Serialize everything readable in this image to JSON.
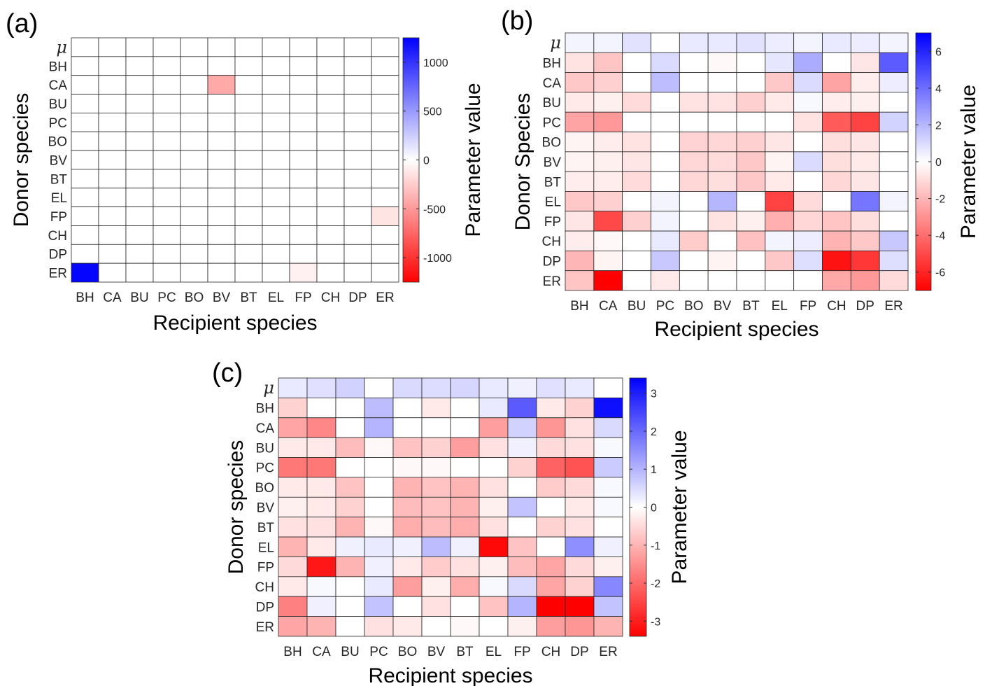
{
  "figure": {
    "background": "#ffffff"
  },
  "colormap": {
    "neg": "#ff0000",
    "zero": "#ffffff",
    "pos": "#0000ff",
    "grid": "#262626"
  },
  "chart_data": [
    {
      "type": "heatmap",
      "panel_label": "(a)",
      "xlabel": "Recipient species",
      "ylabel": "Donor species",
      "colorbar_label": "Parameter value",
      "columns": [
        "BH",
        "CA",
        "BU",
        "PC",
        "BO",
        "BV",
        "BT",
        "EL",
        "FP",
        "CH",
        "DP",
        "ER"
      ],
      "rows": [
        "μ",
        "BH",
        "CA",
        "BU",
        "PC",
        "BO",
        "BV",
        "BT",
        "EL",
        "FP",
        "CH",
        "DP",
        "ER"
      ],
      "clim": [
        -1250,
        1250
      ],
      "colorbar_ticks": [
        "1000",
        "500",
        "0",
        "-500",
        "-1000"
      ],
      "colorbar_tick_values": [
        1000,
        500,
        0,
        -500,
        -1000
      ],
      "values": [
        [
          0,
          0,
          0,
          0,
          0,
          0,
          0,
          0,
          0,
          0,
          0,
          0
        ],
        [
          0,
          0,
          0,
          0,
          0,
          0,
          0,
          0,
          0,
          0,
          0,
          0
        ],
        [
          0,
          0,
          0,
          0,
          0,
          -420,
          0,
          0,
          0,
          0,
          0,
          0
        ],
        [
          0,
          0,
          0,
          0,
          0,
          0,
          0,
          0,
          0,
          0,
          0,
          0
        ],
        [
          0,
          0,
          0,
          0,
          0,
          0,
          0,
          0,
          0,
          0,
          0,
          0
        ],
        [
          0,
          0,
          0,
          0,
          0,
          0,
          0,
          0,
          0,
          0,
          0,
          0
        ],
        [
          0,
          0,
          0,
          0,
          0,
          0,
          0,
          0,
          0,
          0,
          0,
          0
        ],
        [
          0,
          0,
          0,
          0,
          0,
          0,
          0,
          0,
          0,
          0,
          0,
          0
        ],
        [
          0,
          0,
          0,
          0,
          0,
          0,
          0,
          0,
          0,
          0,
          0,
          0
        ],
        [
          0,
          0,
          0,
          0,
          0,
          0,
          0,
          0,
          0,
          0,
          0,
          -130
        ],
        [
          0,
          0,
          0,
          0,
          0,
          0,
          0,
          0,
          0,
          0,
          0,
          0
        ],
        [
          0,
          0,
          0,
          0,
          0,
          0,
          0,
          0,
          0,
          0,
          0,
          0
        ],
        [
          1230,
          0,
          0,
          0,
          0,
          0,
          0,
          0,
          -70,
          0,
          0,
          0
        ]
      ]
    },
    {
      "type": "heatmap",
      "panel_label": "(b)",
      "xlabel": "Recipient species",
      "ylabel": "Donor Species",
      "colorbar_label": "Parameter value",
      "columns": [
        "BH",
        "CA",
        "BU",
        "PC",
        "BO",
        "BV",
        "BT",
        "EL",
        "FP",
        "CH",
        "DP",
        "ER"
      ],
      "rows": [
        "μ",
        "BH",
        "CA",
        "BU",
        "PC",
        "BO",
        "BV",
        "BT",
        "EL",
        "FP",
        "CH",
        "DP",
        "ER"
      ],
      "clim": [
        -7,
        7
      ],
      "colorbar_ticks": [
        "6",
        "4",
        "2",
        "0",
        "-2",
        "-4",
        "-6"
      ],
      "colorbar_tick_values": [
        6,
        4,
        2,
        0,
        -2,
        -4,
        -6
      ],
      "values": [
        [
          0.3,
          0.3,
          0.8,
          0,
          0.6,
          0.6,
          0.8,
          0.5,
          0.3,
          0.6,
          0.5,
          0.3
        ],
        [
          -0.8,
          -1.6,
          0,
          1,
          0,
          -0.2,
          0,
          0.7,
          2.3,
          0,
          -0.7,
          4.5
        ],
        [
          -1.5,
          -1.3,
          0,
          1.8,
          0,
          0,
          0,
          -1.5,
          1,
          -2.5,
          -0.5,
          0.5
        ],
        [
          -0.6,
          -0.4,
          -1,
          0,
          -0.8,
          -0.8,
          -1.3,
          -0.6,
          0.2,
          -0.5,
          -0.4,
          0
        ],
        [
          -2.5,
          -2.8,
          0,
          0,
          0,
          0,
          0,
          0,
          -0.8,
          -4.5,
          -5.2,
          1.2
        ],
        [
          -0.3,
          -0.5,
          -0.8,
          0,
          -1.2,
          -1.1,
          -1.3,
          -0.7,
          0,
          -0.9,
          -0.7,
          0
        ],
        [
          -0.3,
          -0.4,
          -0.7,
          0,
          -1.1,
          -1,
          -1.5,
          -0.3,
          1,
          -0.9,
          -0.6,
          0
        ],
        [
          -0.5,
          -0.5,
          -1,
          0,
          -1.1,
          -0.9,
          -1.5,
          -0.6,
          0,
          -1.1,
          -0.7,
          0
        ],
        [
          -1.5,
          -1.3,
          0,
          0.3,
          0,
          2,
          0,
          -5.2,
          -1,
          0,
          3.8,
          0.3
        ],
        [
          -0.7,
          -5,
          -1.3,
          0.3,
          0,
          -0.8,
          -0.4,
          -2.2,
          -1.1,
          -1.6,
          -0.9,
          0
        ],
        [
          -0.5,
          -0.2,
          0,
          0.6,
          -1.4,
          0,
          -1.7,
          0.3,
          0.5,
          -2.1,
          -1.5,
          1.5
        ],
        [
          -2,
          -0.3,
          0,
          1.5,
          0,
          -0.3,
          0,
          -1.5,
          0.9,
          -6.5,
          -5.5,
          0.9
        ],
        [
          -1.6,
          -7,
          0,
          -0.6,
          0,
          0,
          0,
          0,
          0,
          -2.4,
          -2.8,
          -1
        ]
      ]
    },
    {
      "type": "heatmap",
      "panel_label": "(c)",
      "xlabel": "Recipient species",
      "ylabel": "Donor species",
      "colorbar_label": "Parameter value",
      "columns": [
        "BH",
        "CA",
        "BU",
        "PC",
        "BO",
        "BV",
        "BT",
        "EL",
        "FP",
        "CH",
        "DP",
        "ER"
      ],
      "rows": [
        "μ",
        "BH",
        "CA",
        "BU",
        "PC",
        "BO",
        "BV",
        "BT",
        "EL",
        "FP",
        "CH",
        "DP",
        "ER"
      ],
      "clim": [
        -3.4,
        3.4
      ],
      "colorbar_ticks": [
        "3",
        "2",
        "1",
        "0",
        "-1",
        "-2",
        "-3"
      ],
      "colorbar_tick_values": [
        3,
        2,
        1,
        0,
        -1,
        -2,
        -3
      ],
      "values": [
        [
          0.3,
          0.4,
          0.6,
          0,
          0.5,
          0.45,
          0.55,
          0.3,
          0.2,
          0.4,
          0.3,
          0
        ],
        [
          -0.6,
          0,
          0,
          0.9,
          0,
          -0.3,
          0,
          0.3,
          2.2,
          -0.3,
          -0.6,
          3.2
        ],
        [
          -1.2,
          -1.6,
          0,
          1,
          0,
          0,
          0,
          -1.3,
          0.6,
          -1.4,
          -0.4,
          0.5
        ],
        [
          -0.3,
          -0.3,
          -0.9,
          -0.1,
          -0.8,
          -0.6,
          -1.3,
          -0.4,
          0.2,
          -0.5,
          -0.4,
          0.1
        ],
        [
          -1.8,
          -1.8,
          0,
          0,
          -0.1,
          -0.1,
          0,
          0,
          -0.6,
          -2.1,
          -2.3,
          0.7
        ],
        [
          -0.3,
          -0.3,
          -0.8,
          0,
          -1,
          -0.8,
          -1,
          -0.4,
          0,
          -0.7,
          -0.5,
          0.1
        ],
        [
          -0.2,
          -0.3,
          -0.6,
          0,
          -0.9,
          -0.8,
          -1,
          -0.2,
          0.8,
          0,
          -0.3,
          0.1
        ],
        [
          -0.4,
          -0.4,
          -1,
          -0.1,
          -1.1,
          -0.9,
          -1.1,
          -0.4,
          0,
          -0.6,
          -0.4,
          0
        ],
        [
          -1,
          -0.3,
          0.2,
          0.3,
          0.2,
          0.9,
          0.2,
          -3.3,
          -0.8,
          0,
          1.5,
          0.2
        ],
        [
          -0.5,
          -3.1,
          -1,
          0.2,
          -0.3,
          -0.7,
          -0.4,
          -0.2,
          -0.9,
          -1.2,
          -0.5,
          -0.2
        ],
        [
          -0.3,
          0.1,
          0,
          0.3,
          -1.3,
          -0.2,
          -1.1,
          0.1,
          0.5,
          -1.2,
          -0.6,
          1.6
        ],
        [
          -1.7,
          0.2,
          0,
          0.8,
          0,
          -0.4,
          0,
          -0.8,
          1,
          -3.4,
          -3.4,
          0.8
        ],
        [
          -1.2,
          -1,
          0,
          -0.4,
          -0.3,
          0,
          -0.1,
          0,
          -0.2,
          -1.3,
          -1.4,
          -1
        ]
      ]
    }
  ]
}
